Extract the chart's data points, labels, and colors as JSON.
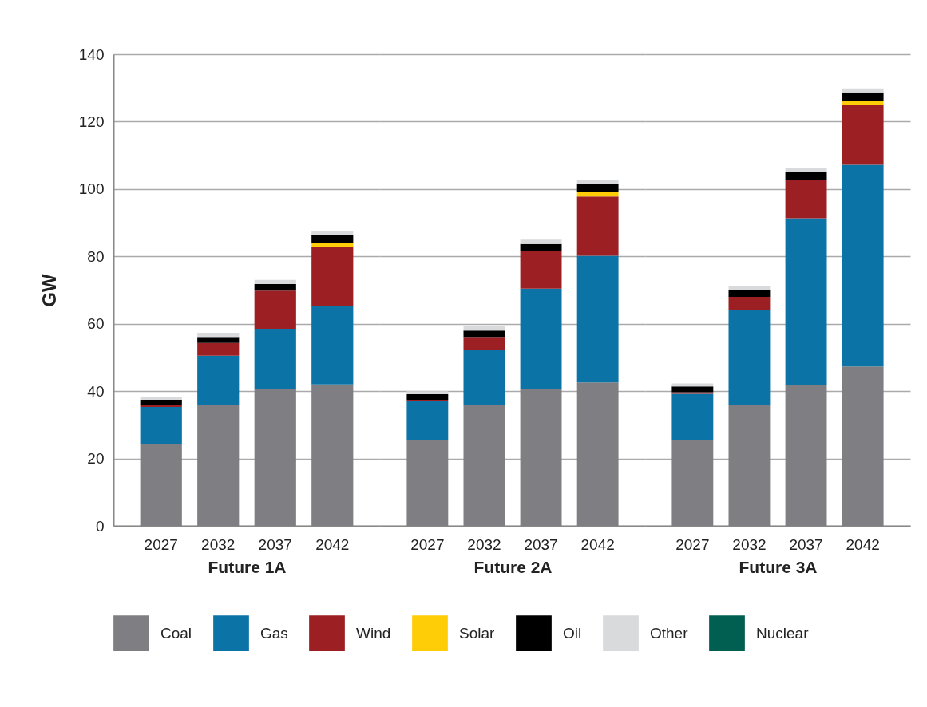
{
  "chart_data": [
    {
      "type": "bar",
      "stacked": true,
      "xlabel": "Future 1A",
      "ylabel": "GW",
      "categories": [
        "2027",
        "2032",
        "2037",
        "2042"
      ],
      "ylim": [
        0,
        140
      ],
      "yticks": [
        0,
        20,
        40,
        60,
        80,
        100,
        120,
        140
      ],
      "grid": "y",
      "legend": "bottom",
      "series": [
        {
          "name": "Coal",
          "color": "#7f7f83",
          "values": [
            24.2,
            35.9,
            40.7,
            42.0
          ]
        },
        {
          "name": "Gas",
          "color": "#0b73a6",
          "values": [
            11.1,
            14.6,
            17.8,
            23.3
          ]
        },
        {
          "name": "Wind",
          "color": "#9c2023",
          "values": [
            0.5,
            3.8,
            11.3,
            17.6
          ]
        },
        {
          "name": "Solar",
          "color": "#fecd08",
          "values": [
            0,
            0,
            0,
            1.2
          ]
        },
        {
          "name": "Oil",
          "color": "#000000",
          "values": [
            1.6,
            1.8,
            2.0,
            2.1
          ]
        },
        {
          "name": "Other",
          "color": "#d9dadc",
          "values": [
            0.9,
            1.2,
            1.2,
            1.2
          ]
        },
        {
          "name": "Nuclear",
          "color": "#005f50",
          "values": [
            0,
            0,
            0,
            0
          ]
        }
      ]
    },
    {
      "type": "bar",
      "stacked": true,
      "xlabel": "Future 2A",
      "categories": [
        "2027",
        "2032",
        "2037",
        "2042"
      ],
      "ylim": [
        0,
        140
      ],
      "yticks": [
        0,
        20,
        40,
        60,
        80,
        100,
        120,
        140
      ],
      "grid": "y",
      "tick_labels": "x",
      "series": [
        {
          "color": "#7f7f83",
          "values": [
            25.6,
            35.9,
            40.7,
            42.6
          ]
        },
        {
          "color": "#0b73a6",
          "values": [
            11.4,
            16.3,
            29.7,
            37.6
          ]
        },
        {
          "color": "#9c2023",
          "values": [
            0.4,
            3.9,
            11.3,
            17.6
          ]
        },
        {
          "color": "#fecd08",
          "values": [
            0,
            0,
            0,
            1.2
          ]
        },
        {
          "color": "#000000",
          "values": [
            1.7,
            1.9,
            2.0,
            2.5
          ]
        },
        {
          "color": "#d9dadc",
          "values": [
            0.9,
            1.2,
            1.3,
            1.2
          ]
        },
        {
          "color": "#005f50",
          "values": [
            0,
            0,
            0,
            0
          ]
        }
      ]
    },
    {
      "type": "bar",
      "stacked": true,
      "xlabel": "Future 3A",
      "categories": [
        "2027",
        "2032",
        "2037",
        "2042"
      ],
      "ylim": [
        0,
        140
      ],
      "yticks": [
        0,
        20,
        40,
        60,
        80,
        100,
        120,
        140
      ],
      "grid": "y",
      "tick_labels": "x",
      "series": [
        {
          "color": "#7f7f83",
          "values": [
            25.6,
            35.8,
            41.9,
            47.3
          ]
        },
        {
          "color": "#0b73a6",
          "values": [
            13.6,
            28.4,
            49.4,
            59.9
          ]
        },
        {
          "color": "#9c2023",
          "values": [
            0.5,
            3.8,
            11.5,
            17.7
          ]
        },
        {
          "color": "#fecd08",
          "values": [
            0,
            0,
            0,
            1.3
          ]
        },
        {
          "color": "#000000",
          "values": [
            1.7,
            2.0,
            2.2,
            2.5
          ]
        },
        {
          "color": "#d9dadc",
          "values": [
            0.9,
            1.2,
            1.3,
            1.2
          ]
        },
        {
          "color": "#005f50",
          "values": [
            0,
            0,
            0,
            0
          ]
        }
      ]
    }
  ]
}
